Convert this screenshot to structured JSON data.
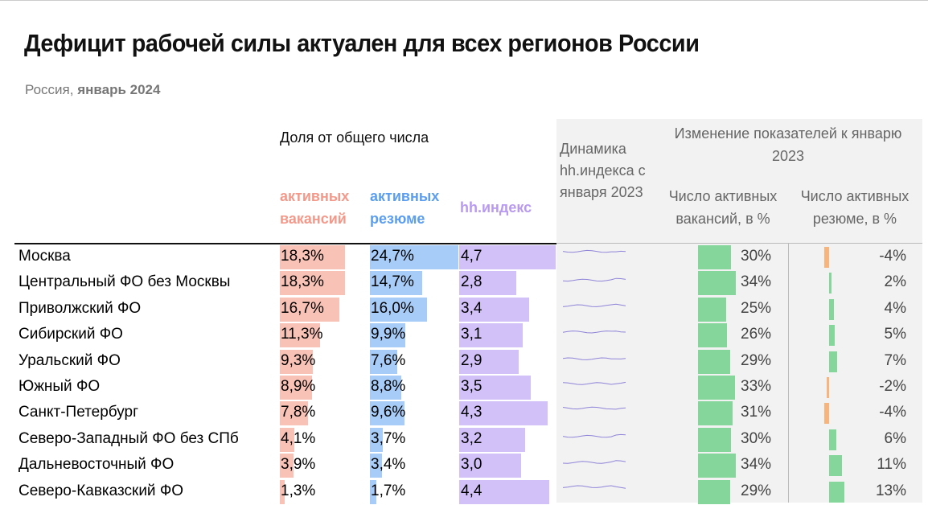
{
  "title": "Дефицит рабочей силы актуален для всех регионов России",
  "subtitle_region": "Россия,",
  "subtitle_period": "январь 2024",
  "headers": {
    "share": "Доля от общего числа",
    "vacancies": "активных вакансий",
    "resumes": "активных резюме",
    "hh_index": "hh.индекс",
    "dynamics": "Динамика hh.индекса с января 2023",
    "change": "Изменение показателей к январю 2023",
    "vac_change": "Число активных вакансий, в %",
    "res_change": "Число активных резюме, в %"
  },
  "colors": {
    "vacancies": "#f9c2b6",
    "resumes": "#a8ccf8",
    "hh_index": "#d2c0f8",
    "vac_head": "#f4998a",
    "res_head": "#5b9ef0",
    "hh_head": "#b89af0",
    "growth": "#84d69b",
    "res_pos": "#84d69b",
    "res_neg": "#f8b47a",
    "spark": "#8f84d8"
  },
  "chart_data": {
    "type": "table",
    "regions": [
      {
        "name": "Москва",
        "vacancies_share": 18.3,
        "vacancies_label": "18,3%",
        "resumes_share": 24.7,
        "resumes_label": "24,7%",
        "hh_index": 4.7,
        "hh_label": "4,7",
        "vac_change": 30,
        "vac_change_label": "30%",
        "res_change": -4,
        "res_change_label": "-4%"
      },
      {
        "name": "Центральный ФО без Москвы",
        "vacancies_share": 18.3,
        "vacancies_label": "18,3%",
        "resumes_share": 14.7,
        "resumes_label": "14,7%",
        "hh_index": 2.8,
        "hh_label": "2,8",
        "vac_change": 34,
        "vac_change_label": "34%",
        "res_change": 2,
        "res_change_label": "2%"
      },
      {
        "name": "Приволжский ФО",
        "vacancies_share": 16.7,
        "vacancies_label": "16,7%",
        "resumes_share": 16.0,
        "resumes_label": "16,0%",
        "hh_index": 3.4,
        "hh_label": "3,4",
        "vac_change": 25,
        "vac_change_label": "25%",
        "res_change": 4,
        "res_change_label": "4%"
      },
      {
        "name": "Сибирский ФО",
        "vacancies_share": 11.3,
        "vacancies_label": "11,3%",
        "resumes_share": 9.9,
        "resumes_label": "9,9%",
        "hh_index": 3.1,
        "hh_label": "3,1",
        "vac_change": 26,
        "vac_change_label": "26%",
        "res_change": 5,
        "res_change_label": "5%"
      },
      {
        "name": "Уральский ФО",
        "vacancies_share": 9.3,
        "vacancies_label": "9,3%",
        "resumes_share": 7.6,
        "resumes_label": "7,6%",
        "hh_index": 2.9,
        "hh_label": "2,9",
        "vac_change": 29,
        "vac_change_label": "29%",
        "res_change": 7,
        "res_change_label": "7%"
      },
      {
        "name": "Южный ФО",
        "vacancies_share": 8.9,
        "vacancies_label": "8,9%",
        "resumes_share": 8.8,
        "resumes_label": "8,8%",
        "hh_index": 3.5,
        "hh_label": "3,5",
        "vac_change": 33,
        "vac_change_label": "33%",
        "res_change": -2,
        "res_change_label": "-2%"
      },
      {
        "name": "Санкт-Петербург",
        "vacancies_share": 7.8,
        "vacancies_label": "7,8%",
        "resumes_share": 9.6,
        "resumes_label": "9,6%",
        "hh_index": 4.3,
        "hh_label": "4,3",
        "vac_change": 31,
        "vac_change_label": "31%",
        "res_change": -4,
        "res_change_label": "-4%"
      },
      {
        "name": "Северо-Западный ФО без СПб",
        "vacancies_share": 4.1,
        "vacancies_label": "4,1%",
        "resumes_share": 3.7,
        "resumes_label": "3,7%",
        "hh_index": 3.2,
        "hh_label": "3,2",
        "vac_change": 30,
        "vac_change_label": "30%",
        "res_change": 6,
        "res_change_label": "6%"
      },
      {
        "name": "Дальневосточный ФО",
        "vacancies_share": 3.9,
        "vacancies_label": "3,9%",
        "resumes_share": 3.4,
        "resumes_label": "3,4%",
        "hh_index": 3.0,
        "hh_label": "3,0",
        "vac_change": 34,
        "vac_change_label": "34%",
        "res_change": 11,
        "res_change_label": "11%"
      },
      {
        "name": "Северо-Кавказский ФО",
        "vacancies_share": 1.3,
        "vacancies_label": "1,3%",
        "resumes_share": 1.7,
        "resumes_label": "1,7%",
        "hh_index": 4.4,
        "hh_label": "4,4",
        "vac_change": 29,
        "vac_change_label": "29%",
        "res_change": 13,
        "res_change_label": "13%"
      }
    ]
  }
}
